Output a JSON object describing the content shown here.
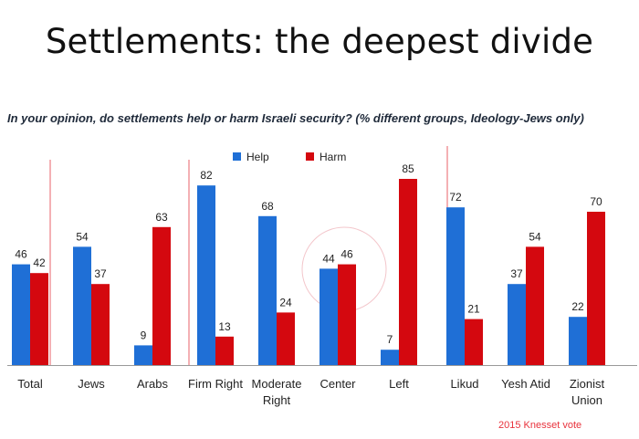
{
  "title": "Settlements: the deepest divide",
  "subtitle": "In your opinion, do settlements help or harm Israeli security? (% different groups, Ideology-Jews only)",
  "footnote": "2015 Knesset vote",
  "colors": {
    "help": "#1f6fd6",
    "harm": "#d4080f",
    "divider": "#e8606a",
    "axis": "#999999"
  },
  "chart_data": {
    "type": "bar",
    "categories": [
      "Total",
      "Jews",
      "Arabs",
      "Firm Right",
      "Moderate Right",
      "Center",
      "Left",
      "Likud",
      "Yesh Atid",
      "Zionist Union"
    ],
    "category_lines": [
      [
        "Total"
      ],
      [
        "Jews"
      ],
      [
        "Arabs"
      ],
      [
        "Firm Right"
      ],
      [
        "Moderate",
        "Right"
      ],
      [
        "Center"
      ],
      [
        "Left"
      ],
      [
        "Likud"
      ],
      [
        "Yesh Atid"
      ],
      [
        "Zionist",
        "Union"
      ]
    ],
    "series": [
      {
        "name": "Help",
        "values": [
          46,
          54,
          9,
          82,
          68,
          44,
          7,
          72,
          37,
          22
        ]
      },
      {
        "name": "Harm",
        "values": [
          42,
          37,
          63,
          13,
          24,
          46,
          85,
          21,
          54,
          70
        ]
      }
    ],
    "ylim": [
      0,
      100
    ],
    "legend_position": "top-center",
    "highlight_category": "Center"
  }
}
